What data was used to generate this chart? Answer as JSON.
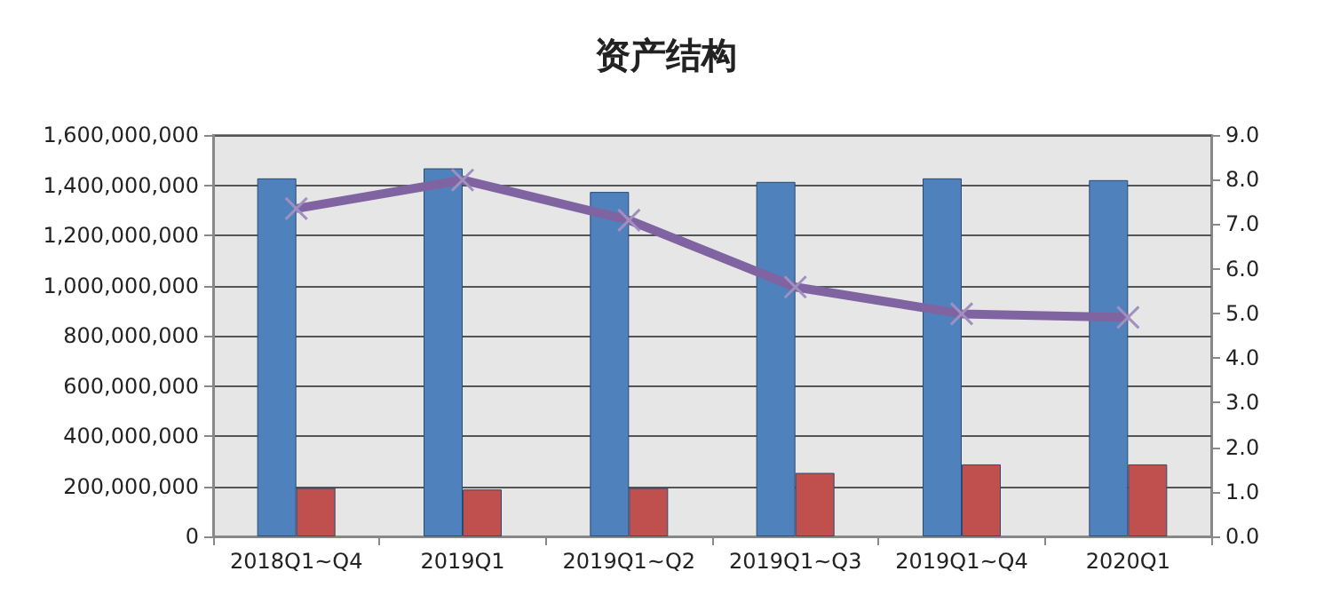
{
  "chart_data": {
    "type": "bar",
    "title": "资产结构",
    "categories": [
      "2018Q1~Q4",
      "2019Q1",
      "2019Q1~Q2",
      "2019Q1~Q3",
      "2019Q1~Q4",
      "2020Q1"
    ],
    "series": [
      {
        "color": "#4f81bd",
        "values": [
          1427000000,
          1467000000,
          1373000000,
          1413000000,
          1427000000,
          1420000000
        ]
      },
      {
        "color": "#c0504d",
        "values": [
          193000000,
          187000000,
          193000000,
          253000000,
          287000000,
          287000000
        ]
      },
      {
        "type": "line",
        "axis": "y2",
        "color": "#8064a2",
        "marker": "cross",
        "values": [
          7.35,
          7.99,
          7.09,
          5.59,
          4.99,
          4.91
        ]
      }
    ],
    "ylim": [
      0,
      1600000000
    ],
    "yticks": [
      0,
      {
        "value": 200000000,
        "label": "200,000,000"
      },
      {
        "value": 400000000,
        "label": "400,000,000"
      },
      {
        "value": 600000000,
        "label": "600,000,000"
      },
      {
        "value": 800000000,
        "label": "800,000,000"
      },
      {
        "value": 1000000000,
        "label": "1,000,000,000"
      },
      {
        "value": 1200000000,
        "label": "1,200,000,000"
      },
      {
        "value": 1400000000,
        "label": "1,400,000,000"
      },
      {
        "value": 1600000000,
        "label": "1,600,000,000"
      }
    ],
    "y2lim": [
      0,
      9
    ],
    "y2ticks": [
      {
        "value": 0,
        "label": "0.0"
      },
      {
        "value": 1,
        "label": "1.0"
      },
      {
        "value": 2,
        "label": "2.0"
      },
      {
        "value": 3,
        "label": "3.0"
      },
      {
        "value": 4,
        "label": "4.0"
      },
      {
        "value": 5,
        "label": "5.0"
      },
      {
        "value": 6,
        "label": "6.0"
      },
      {
        "value": 7,
        "label": "7.0"
      },
      {
        "value": 8,
        "label": "8.0"
      },
      {
        "value": 9,
        "label": "9.0"
      }
    ],
    "grid": "y"
  }
}
